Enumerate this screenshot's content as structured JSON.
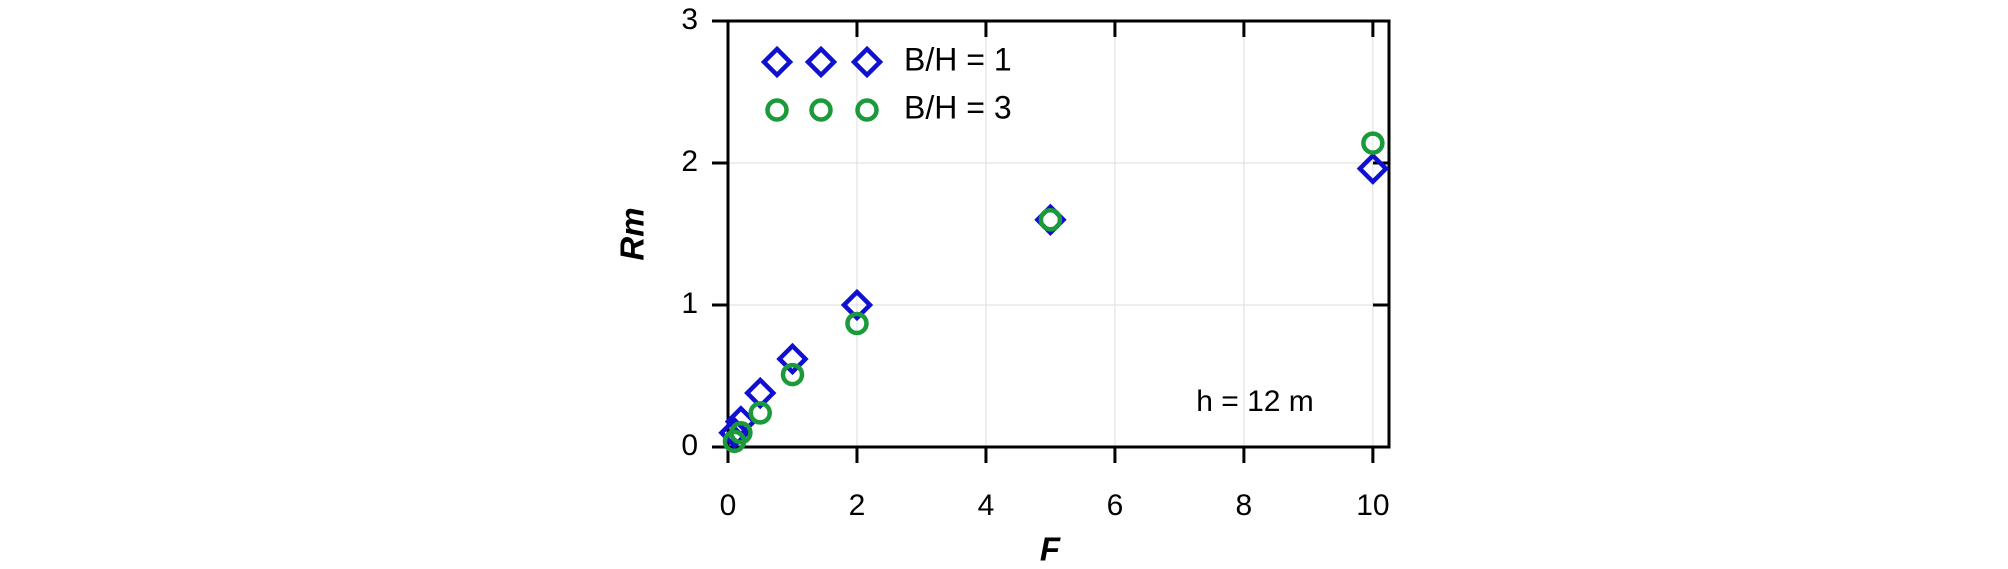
{
  "chart_data": {
    "type": "scatter",
    "xlabel": "F",
    "ylabel": "Rm",
    "annotation": "h = 12 m",
    "xlim": [
      0,
      10.25
    ],
    "ylim": [
      0,
      3
    ],
    "xticks": [
      0,
      2,
      4,
      6,
      8,
      10
    ],
    "yticks": [
      0,
      1,
      2,
      3
    ],
    "grid": true,
    "legend": "upper left",
    "series": [
      {
        "name": "B/H = 1",
        "color": "#1010d0",
        "marker": "diamond",
        "x": [
          0.1,
          0.2,
          0.5,
          1,
          2,
          5,
          10
        ],
        "values": [
          0.1,
          0.18,
          0.38,
          0.62,
          1.0,
          1.6,
          1.96
        ]
      },
      {
        "name": "B/H = 3",
        "color": "#1a9a3a",
        "marker": "circle",
        "x": [
          0.1,
          0.2,
          0.5,
          1,
          2,
          5,
          10
        ],
        "values": [
          0.04,
          0.1,
          0.24,
          0.51,
          0.87,
          1.6,
          2.14
        ]
      }
    ]
  }
}
